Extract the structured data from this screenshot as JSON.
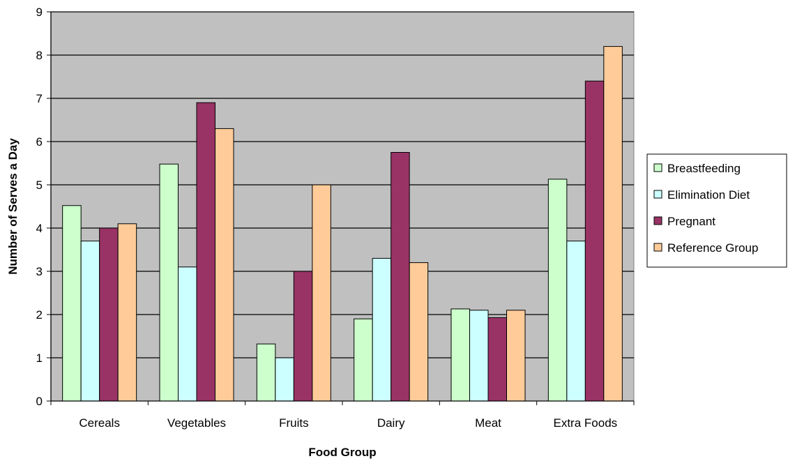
{
  "chart_data": {
    "type": "bar",
    "title": "",
    "xlabel": "Food Group",
    "ylabel": "Number of Serves a Day",
    "categories": [
      "Cereals",
      "Vegetables",
      "Fruits",
      "Dairy",
      "Meat",
      "Extra Foods"
    ],
    "series": [
      {
        "name": "Breastfeeding",
        "color": "#CCFFCC",
        "values": [
          4.52,
          5.48,
          1.32,
          1.9,
          2.13,
          5.13
        ]
      },
      {
        "name": "Elimination Diet",
        "color": "#CCFFFF",
        "values": [
          3.7,
          3.1,
          1.0,
          3.3,
          2.1,
          3.7
        ]
      },
      {
        "name": "Pregnant",
        "color": "#993366",
        "values": [
          4.0,
          6.9,
          3.0,
          5.75,
          1.93,
          7.4
        ]
      },
      {
        "name": "Reference Group",
        "color": "#FFCC99",
        "values": [
          4.1,
          6.3,
          5.0,
          3.2,
          2.1,
          8.2
        ]
      }
    ],
    "ylim": [
      0,
      9
    ],
    "yticks": [
      "0",
      "1",
      "2",
      "3",
      "4",
      "5",
      "6",
      "7",
      "8",
      "9"
    ],
    "grid": true,
    "legend_position": "right",
    "plot_background": "#C0C0C0"
  }
}
